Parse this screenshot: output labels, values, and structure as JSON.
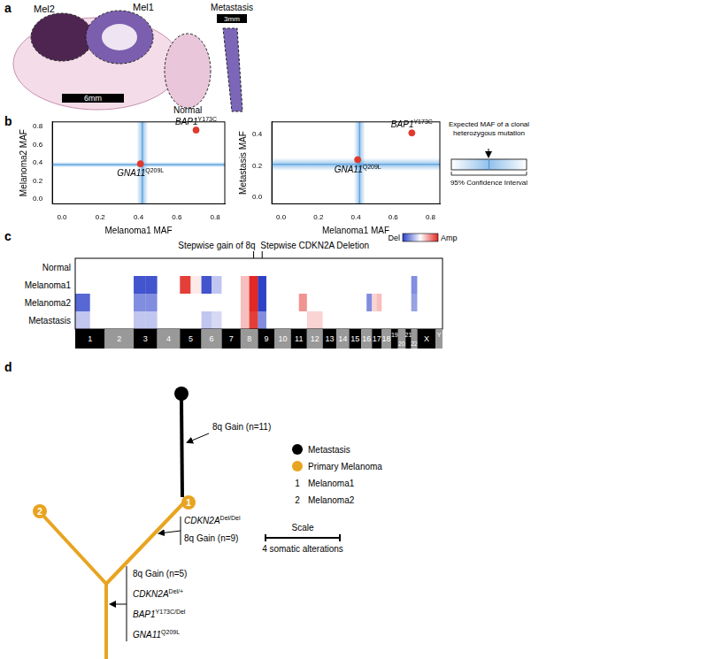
{
  "panel_labels": [
    "a",
    "b",
    "c",
    "d"
  ],
  "panel_a": {
    "labels": [
      "Mel2",
      "Mel1",
      "Normal",
      "Metastasis"
    ],
    "scale_bars": [
      "6mm",
      "3mm"
    ]
  },
  "chart_data": [
    {
      "type": "scatter",
      "x_label": "Melanoma1 MAF",
      "y_label": "Melanoma2 MAF",
      "x": [
        0.41,
        0.7
      ],
      "values": [
        0.39,
        0.76
      ],
      "point_labels": [
        {
          "gene": "GNA11",
          "superscript": "Q209L"
        },
        {
          "gene": "BAP1",
          "superscript": "Y173C"
        }
      ],
      "color": "#e03a2f",
      "expected_maf": {
        "x": 0.42,
        "x_ci": [
          0.39,
          0.45
        ],
        "y": 0.38,
        "y_ci": [
          0.35,
          0.41
        ]
      },
      "xlim": [
        -0.05,
        0.85
      ],
      "ylim": [
        -0.05,
        0.85
      ],
      "xticks": [
        {
          "value": 0,
          "label": "0.0"
        },
        0.2,
        0.4,
        0.6,
        0.8
      ],
      "yticks": [
        {
          "value": 0,
          "label": "0.0"
        },
        0.2,
        0.4,
        0.6,
        0.8
      ],
      "grid": false
    },
    {
      "type": "scatter",
      "x_label": "Melanoma1 MAF",
      "y_label": "Metastasis MAF",
      "x": [
        0.41,
        0.7
      ],
      "values": [
        0.24,
        0.41
      ],
      "point_labels": [
        {
          "gene": "GNA11",
          "superscript": "Q209L"
        },
        {
          "gene": "BAP1",
          "superscript": "Y173C"
        }
      ],
      "color": "#e03a2f",
      "expected_maf": {
        "x": 0.42,
        "x_ci": [
          0.39,
          0.45
        ],
        "y": 0.21,
        "y_ci": [
          0.17,
          0.25
        ]
      },
      "xlim": [
        -0.05,
        0.85
      ],
      "ylim": [
        -0.04,
        0.48
      ],
      "xticks": [
        {
          "value": 0,
          "label": "0.0"
        },
        0.2,
        0.4,
        0.6,
        0.8
      ],
      "yticks": [
        {
          "value": 0,
          "label": "0.0"
        },
        0.2,
        0.4
      ],
      "grid": false
    }
  ],
  "panel_b_legend": {
    "title": "Expected MAF of a clonal heterozygous mutation",
    "label": "95% Confidence Interval"
  },
  "panel_c": {
    "rows": [
      "Normal",
      "Melanoma1",
      "Melanoma2",
      "Metastasis"
    ],
    "chromosomes": [
      {
        "label": "1",
        "length": 249
      },
      {
        "label": "2",
        "length": 243
      },
      {
        "label": "3",
        "length": 198
      },
      {
        "label": "4",
        "length": 191
      },
      {
        "label": "5",
        "length": 181
      },
      {
        "label": "6",
        "length": 171
      },
      {
        "label": "7",
        "length": 159
      },
      {
        "label": "8",
        "length": 146
      },
      {
        "label": "9",
        "length": 141
      },
      {
        "label": "10",
        "length": 136
      },
      {
        "label": "11",
        "length": 135
      },
      {
        "label": "12",
        "length": 133
      },
      {
        "label": "13",
        "length": 115
      },
      {
        "label": "14",
        "length": 107
      },
      {
        "label": "15",
        "length": 102
      },
      {
        "label": "16",
        "length": 90
      },
      {
        "label": "17",
        "length": 83
      },
      {
        "label": "18",
        "length": 78
      },
      {
        "label": "19",
        "length": 59
      },
      {
        "label": "20",
        "length": 63
      },
      {
        "label": "21",
        "length": 48
      },
      {
        "label": "22",
        "length": 51
      },
      {
        "label": "X",
        "length": 155
      },
      {
        "label": "Y",
        "length": 57
      }
    ],
    "cells": [
      [
        [
          0,
          0
        ],
        [
          0,
          0
        ],
        [
          0,
          0
        ],
        [
          0,
          0
        ],
        [
          0,
          0
        ],
        [
          0,
          0
        ],
        [
          0,
          0
        ],
        [
          0,
          0
        ],
        [
          0,
          0
        ],
        [
          0,
          0
        ],
        [
          0,
          0
        ],
        [
          0,
          0
        ],
        [
          0,
          0
        ],
        [
          0,
          0
        ],
        [
          0,
          0
        ],
        [
          0,
          0
        ],
        [
          0,
          0
        ],
        [
          0,
          0
        ],
        [
          0,
          0
        ],
        [
          0,
          0
        ],
        [
          0,
          0
        ],
        [
          0,
          0
        ],
        [
          0,
          0
        ],
        [
          0,
          0
        ]
      ],
      [
        [
          0,
          0
        ],
        [
          0,
          0
        ],
        [
          -0.9,
          -0.9
        ],
        [
          0,
          0
        ],
        [
          0.9,
          0.1
        ],
        [
          -0.9,
          -0.3
        ],
        [
          0,
          0
        ],
        [
          0.3,
          1
        ],
        [
          -1,
          0
        ],
        [
          0,
          0
        ],
        [
          0,
          0
        ],
        [
          0,
          0
        ],
        [
          0,
          0
        ],
        [
          0,
          0
        ],
        [
          0,
          0
        ],
        [
          0,
          0
        ],
        [
          0,
          0
        ],
        [
          0,
          0
        ],
        [
          0,
          0
        ],
        [
          0,
          0
        ],
        [
          0,
          0
        ],
        [
          -0.6,
          -0.6
        ],
        [
          0,
          0
        ],
        [
          0,
          0
        ]
      ],
      [
        [
          -0.8,
          0
        ],
        [
          0,
          0
        ],
        [
          -0.6,
          -0.6
        ],
        [
          0,
          0
        ],
        [
          0,
          0
        ],
        [
          0,
          0
        ],
        [
          0,
          0
        ],
        [
          0.3,
          1
        ],
        [
          -1,
          0
        ],
        [
          0,
          0
        ],
        [
          0,
          0.5
        ],
        [
          0,
          0
        ],
        [
          0,
          0
        ],
        [
          0,
          0
        ],
        [
          0,
          0
        ],
        [
          0,
          -0.6
        ],
        [
          0.2,
          0.3
        ],
        [
          0,
          0
        ],
        [
          0,
          0
        ],
        [
          0,
          0
        ],
        [
          0,
          0
        ],
        [
          -0.5,
          -0.5
        ],
        [
          0,
          0
        ],
        [
          0,
          0
        ]
      ],
      [
        [
          -0.3,
          0
        ],
        [
          0,
          0
        ],
        [
          -0.3,
          -0.3
        ],
        [
          0,
          0
        ],
        [
          0,
          0
        ],
        [
          -0.3,
          -0.2
        ],
        [
          0,
          0
        ],
        [
          0.3,
          0.9
        ],
        [
          -0.6,
          0
        ],
        [
          0,
          0
        ],
        [
          0,
          0
        ],
        [
          0.2,
          0.2
        ],
        [
          0,
          0
        ],
        [
          0,
          0
        ],
        [
          0,
          0
        ],
        [
          0,
          0
        ],
        [
          0,
          0
        ],
        [
          0,
          0
        ],
        [
          0,
          0
        ],
        [
          0,
          0
        ],
        [
          0,
          0
        ],
        [
          0,
          0
        ],
        [
          0,
          0
        ],
        [
          0,
          0
        ]
      ]
    ],
    "color_scale": {
      "labels": [
        "Del",
        "Amp"
      ],
      "range": [
        -1,
        1
      ]
    },
    "annotations": [
      {
        "text": "Stepwise gain of 8q",
        "chrom": "8",
        "arm": "q"
      },
      {
        "text": "Stepwise CDKN2A Deletion",
        "chrom": "9",
        "arm": "p"
      }
    ]
  },
  "panel_d": {
    "branch_labels": {
      "metastasis": [
        {
          "text": "8q Gain (n=11)"
        }
      ],
      "melanoma1": [
        {
          "gene": "CDKN2A",
          "superscript": "Del/Del"
        },
        {
          "text": "8q Gain (n=9)"
        }
      ],
      "trunk": [
        {
          "text": "8q Gain (n=5)"
        },
        {
          "gene": "CDKN2A",
          "superscript": "Del/+"
        },
        {
          "gene": "BAP1",
          "superscript": "Y173C/Del"
        },
        {
          "gene": "GNA11",
          "superscript": "Q209L"
        }
      ]
    },
    "node_labels": [
      "1",
      "2"
    ],
    "legend": [
      {
        "marker": "circle",
        "color": "#000000",
        "text": "Metastasis"
      },
      {
        "marker": "circle",
        "color": "#e8a420",
        "text": "Primary Melanoma"
      },
      {
        "key": "1",
        "text": "Melanoma1"
      },
      {
        "key": "2",
        "text": "Melanoma2"
      }
    ],
    "scale": {
      "title": "Scale",
      "label": "4 somatic alterations"
    }
  }
}
